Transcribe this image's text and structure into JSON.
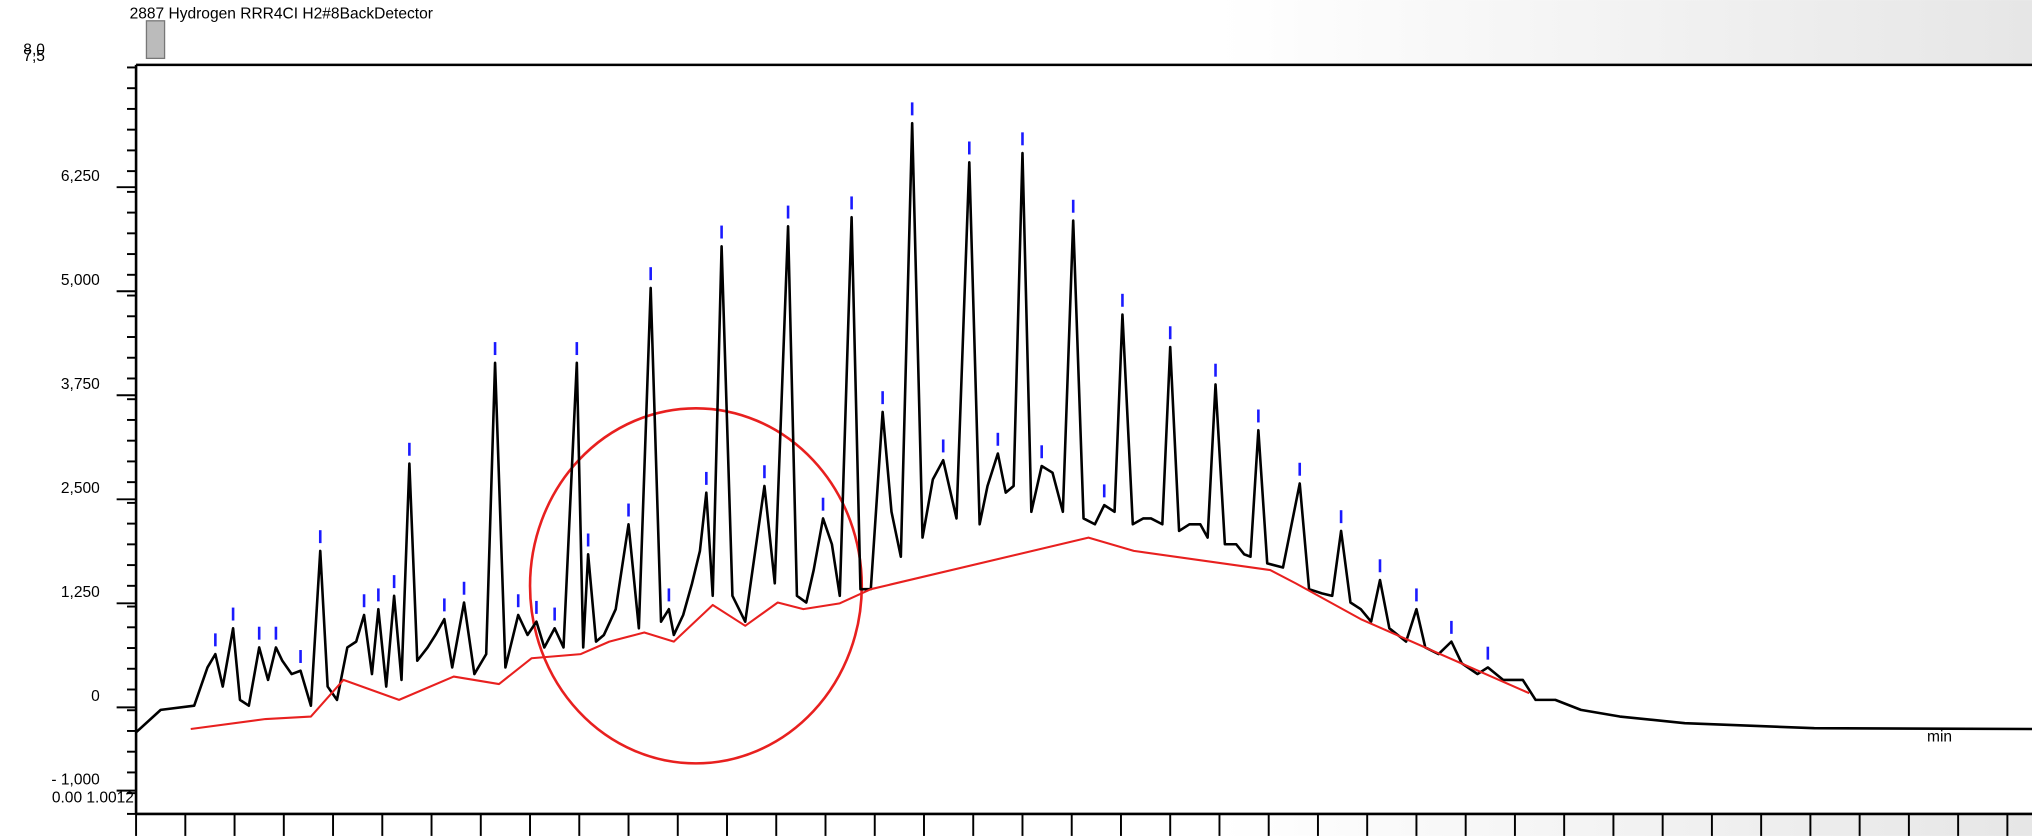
{
  "header": {
    "title": "2887 Hydrogen RRR4CI H2#8BackDetector",
    "top_labels": [
      "8,0",
      "7,5"
    ],
    "bottom_label": "0.00 1.0012"
  },
  "chart_data": {
    "type": "line",
    "x_label": "min",
    "xlim": [
      0,
      38.5
    ],
    "ylim": [
      -1280,
      7720
    ],
    "yticks": [
      {
        "value": -1000,
        "label": "-   1,000"
      },
      0,
      {
        "value": 1250,
        "label": "1,250"
      },
      {
        "value": 2500,
        "label": "2,500"
      },
      {
        "value": 3750,
        "label": "3,750"
      },
      {
        "value": 5000,
        "label": "5,000"
      },
      {
        "value": 6250,
        "label": "6,250"
      }
    ],
    "peak_marker_color": "#1a1aff",
    "series": [
      {
        "color": "#000000",
        "x": [
          0,
          0.5,
          1.18,
          1.45,
          1.61,
          1.76,
          1.97,
          2.11,
          2.29,
          2.5,
          2.68,
          2.84,
          2.97,
          3.16,
          3.34,
          3.55,
          3.74,
          3.89,
          4.08,
          4.29,
          4.47,
          4.63,
          4.79,
          4.92,
          5.08,
          5.24,
          5.39,
          5.55,
          5.71,
          5.92,
          6.08,
          6.26,
          6.42,
          6.66,
          6.87,
          7.11,
          7.29,
          7.5,
          7.76,
          7.95,
          8.13,
          8.29,
          8.5,
          8.68,
          8.95,
          9.08,
          9.18,
          9.34,
          9.5,
          9.74,
          10,
          10.21,
          10.45,
          10.66,
          10.82,
          10.92,
          11.11,
          11.29,
          11.45,
          11.58,
          11.71,
          11.89,
          12.11,
          12.37,
          12.76,
          12.97,
          13.24,
          13.42,
          13.61,
          13.76,
          13.95,
          14.13,
          14.29,
          14.53,
          14.71,
          14.92,
          15.16,
          15.34,
          15.53,
          15.76,
          15.97,
          16.18,
          16.39,
          16.66,
          16.92,
          17.13,
          17.29,
          17.5,
          17.66,
          17.82,
          18,
          18.18,
          18.39,
          18.61,
          18.82,
          19.03,
          19.24,
          19.47,
          19.66,
          19.87,
          20.03,
          20.24,
          20.45,
          20.61,
          20.84,
          21,
          21.18,
          21.39,
          21.61,
          21.76,
          21.92,
          22.11,
          22.34,
          22.5,
          22.63,
          22.79,
          22.97,
          23.29,
          23.63,
          23.82,
          24.08,
          24.29,
          24.47,
          24.66,
          24.87,
          25.08,
          25.26,
          25.45,
          25.79,
          26,
          26.18,
          26.45,
          26.71,
          26.92,
          27.24,
          27.45,
          27.76,
          28.16,
          28.42,
          28.82,
          29.34,
          30.13,
          31.45,
          34.08,
          38.5
        ],
        "values": [
          -300,
          -30,
          20,
          480,
          640,
          250,
          950,
          90,
          20,
          720,
          330,
          720,
          560,
          400,
          440,
          20,
          1880,
          250,
          90,
          720,
          790,
          1110,
          400,
          1180,
          250,
          1340,
          330,
          2930,
          560,
          720,
          870,
          1060,
          480,
          1260,
          400,
          640,
          4140,
          480,
          1110,
          870,
          1030,
          720,
          950,
          720,
          4140,
          720,
          1840,
          790,
          870,
          1180,
          2200,
          950,
          5040,
          1030,
          1180,
          870,
          1110,
          1490,
          1880,
          2580,
          1340,
          5540,
          1340,
          1030,
          2660,
          1490,
          5780,
          1340,
          1260,
          1650,
          2270,
          1960,
          1340,
          5890,
          1420,
          1420,
          3550,
          2350,
          1810,
          7020,
          2040,
          2740,
          2970,
          2270,
          6550,
          2200,
          2660,
          3050,
          2580,
          2660,
          6660,
          2350,
          2900,
          2820,
          2350,
          5850,
          2270,
          2200,
          2430,
          2350,
          4720,
          2200,
          2270,
          2270,
          2200,
          4330,
          2120,
          2200,
          2200,
          2040,
          3880,
          1960,
          1960,
          1840,
          1810,
          3330,
          1730,
          1680,
          2690,
          1420,
          1370,
          1340,
          2120,
          1260,
          1180,
          1030,
          1530,
          950,
          790,
          1180,
          720,
          640,
          790,
          530,
          400,
          480,
          330,
          330,
          90,
          90,
          -30,
          -110,
          -190,
          -250,
          -260
        ]
      },
      {
        "color": "#e8201f",
        "x": [
          1.11,
          2.63,
          3.55,
          4.21,
          5.34,
          6.45,
          7.37,
          8.03,
          9.03,
          9.61,
          10.32,
          10.92,
          11.71,
          12.37,
          13.03,
          13.55,
          14.29,
          14.92,
          19.34,
          20.26,
          23.03,
          23.55,
          24.87,
          28.29
        ],
        "values": [
          -260,
          -140,
          -110,
          330,
          90,
          370,
          280,
          590,
          640,
          790,
          900,
          790,
          1230,
          980,
          1260,
          1180,
          1250,
          1420,
          2040,
          1880,
          1650,
          1490,
          1060,
          170
        ]
      }
    ]
  }
}
